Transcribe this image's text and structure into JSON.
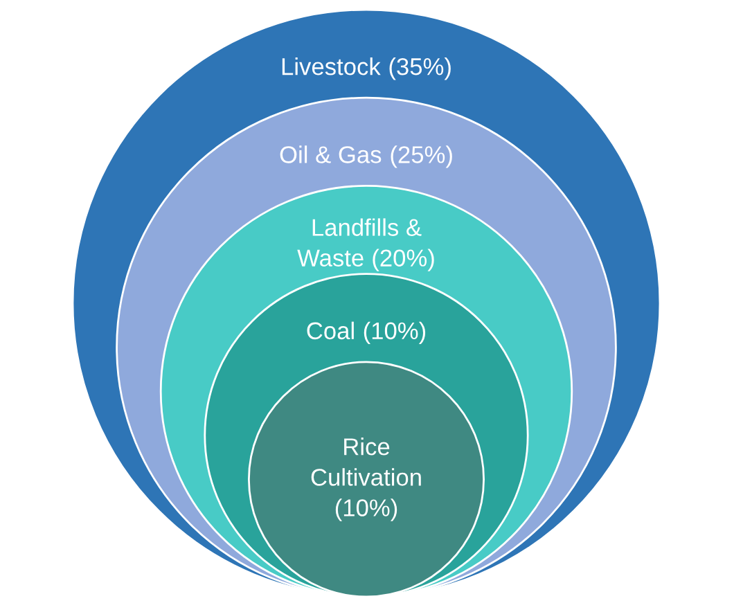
{
  "chart_data": {
    "type": "other",
    "categories": [
      "Livestock",
      "Oil & Gas",
      "Landfills &\nWaste",
      "Coal",
      "Rice\nCultivation"
    ],
    "values": [
      35,
      25,
      20,
      10,
      10
    ],
    "value_labels": [
      "(35%)",
      "(25%)",
      "(20%)",
      "(10%)",
      "(10%)"
    ],
    "colors": [
      "#2e75b6",
      "#8fa9dc",
      "#48cbc6",
      "#29a39b",
      "#3f8982"
    ]
  }
}
